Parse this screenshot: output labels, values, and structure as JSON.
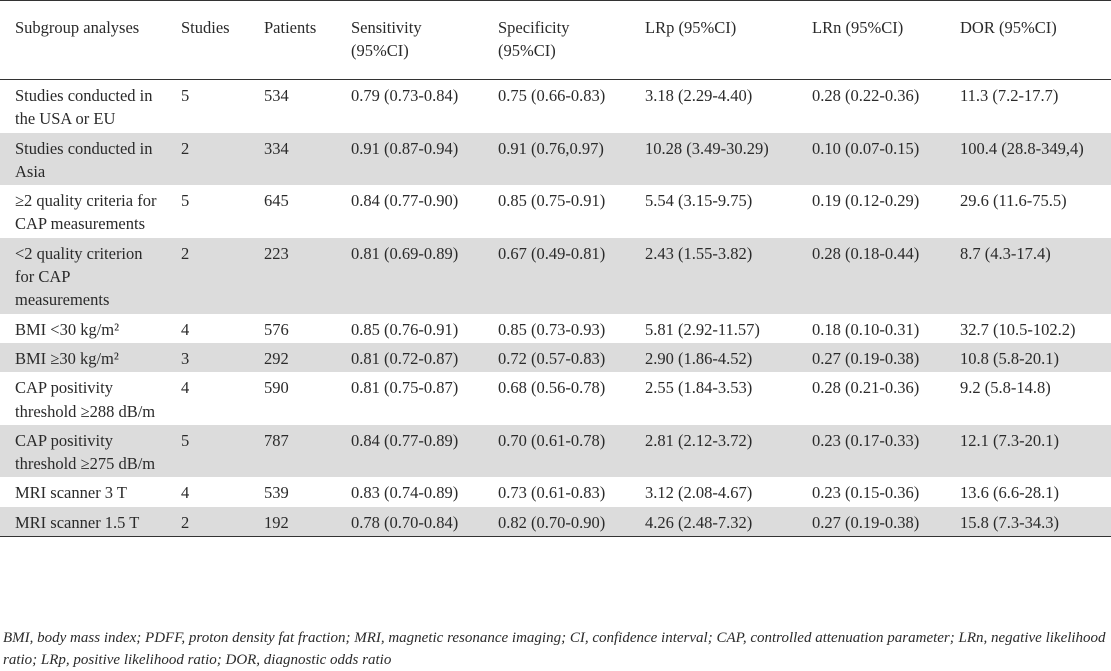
{
  "table": {
    "headers": [
      "Subgroup analyses",
      "Studies",
      "Patients",
      "Sensitivity (95%CI)",
      "Specificity (95%CI)",
      "LRp  (95%CI)",
      "LRn  (95%CI)",
      "DOR  (95%CI)"
    ],
    "rows": [
      {
        "shade": false,
        "cells": [
          "Studies conducted in the USA or EU",
          "5",
          "534",
          "0.79 (0.73-0.84)",
          "0.75 (0.66-0.83)",
          "3.18 (2.29-4.40)",
          "0.28 (0.22-0.36)",
          "11.3 (7.2-17.7)"
        ]
      },
      {
        "shade": true,
        "cells": [
          "Studies conducted in Asia",
          "2",
          "334",
          "0.91 (0.87-0.94)",
          "0.91 (0.76,0.97)",
          "10.28 (3.49-30.29)",
          "0.10 (0.07-0.15)",
          "100.4 (28.8-349,4)"
        ]
      },
      {
        "shade": false,
        "cells": [
          "≥2 quality criteria for CAP measurements",
          "5",
          "645",
          "0.84 (0.77-0.90)",
          "0.85 (0.75-0.91)",
          "5.54 (3.15-9.75)",
          "0.19 (0.12-0.29)",
          "29.6 (11.6-75.5)"
        ]
      },
      {
        "shade": true,
        "cells": [
          "<2 quality criterion for CAP measurements",
          "2",
          "223",
          "0.81 (0.69-0.89)",
          "0.67 (0.49-0.81)",
          "2.43 (1.55-3.82)",
          "0.28 (0.18-0.44)",
          "8.7 (4.3-17.4)"
        ]
      },
      {
        "shade": false,
        "cells": [
          "BMI <30 kg/m²",
          "4",
          "576",
          "0.85 (0.76-0.91)",
          "0.85 (0.73-0.93)",
          "5.81 (2.92-11.57)",
          "0.18 (0.10-0.31)",
          "32.7 (10.5-102.2)"
        ]
      },
      {
        "shade": true,
        "cells": [
          "BMI ≥30 kg/m²",
          "3",
          "292",
          "0.81 (0.72-0.87)",
          "0.72 (0.57-0.83)",
          "2.90 (1.86-4.52)",
          "0.27 (0.19-0.38)",
          "10.8 (5.8-20.1)"
        ]
      },
      {
        "shade": false,
        "cells": [
          "CAP positivity threshold ≥288 dB/m",
          "4",
          "590",
          "0.81 (0.75-0.87)",
          "0.68 (0.56-0.78)",
          "2.55 (1.84-3.53)",
          "0.28 (0.21-0.36)",
          "9.2 (5.8-14.8)"
        ]
      },
      {
        "shade": true,
        "cells": [
          "CAP positivity threshold ≥275 dB/m",
          "5",
          "787",
          "0.84 (0.77-0.89)",
          "0.70 (0.61-0.78)",
          "2.81 (2.12-3.72)",
          "0.23 (0.17-0.33)",
          "12.1 (7.3-20.1)"
        ]
      },
      {
        "shade": false,
        "cells": [
          "MRI scanner 3 T",
          "4",
          "539",
          "0.83 (0.74-0.89)",
          "0.73 (0.61-0.83)",
          "3.12 (2.08-4.67)",
          "0.23 (0.15-0.36)",
          "13.6 (6.6-28.1)"
        ]
      },
      {
        "shade": true,
        "cells": [
          "MRI scanner 1.5 T",
          "2",
          "192",
          "0.78 (0.70-0.84)",
          "0.82 (0.70-0.90)",
          "4.26 (2.48-7.32)",
          "0.27 (0.19-0.38)",
          "15.8 (7.3-34.3)"
        ]
      }
    ]
  },
  "footnote": "BMI, body mass index; PDFF, proton density fat fraction; MRI, magnetic resonance imaging; CI, confidence interval; CAP, controlled attenuation parameter; LRn, negative likelihood ratio; LRp, positive likelihood ratio; DOR, diagnostic odds ratio"
}
